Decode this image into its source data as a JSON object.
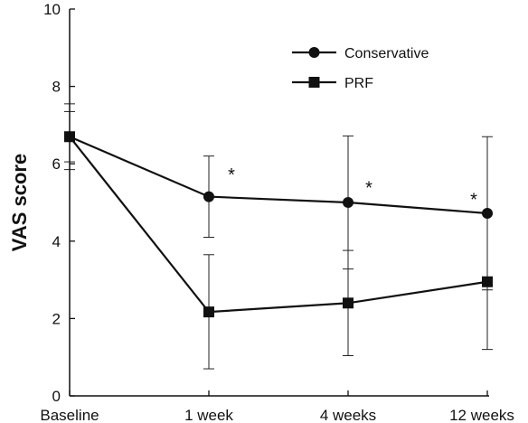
{
  "chart_data": {
    "type": "line",
    "ylabel": "VAS score",
    "xlabel": "",
    "ylim": [
      0,
      10
    ],
    "yticks": [
      0,
      2,
      4,
      6,
      8,
      10
    ],
    "categories": [
      "Baseline",
      "1 week",
      "4 weeks",
      "12 weeks"
    ],
    "legend_position": "top-right",
    "grid": false,
    "series": [
      {
        "name": "Conservative",
        "marker": "circle",
        "color": "#111111",
        "values": [
          6.7,
          5.15,
          5.0,
          4.72
        ],
        "err_upper": [
          7.55,
          6.2,
          6.72,
          6.7
        ],
        "err_lower": [
          5.85,
          4.1,
          3.28,
          2.74
        ]
      },
      {
        "name": "PRF",
        "marker": "square",
        "color": "#111111",
        "values": [
          6.7,
          2.17,
          2.4,
          2.95
        ],
        "err_upper": [
          7.35,
          3.65,
          3.76,
          4.7
        ],
        "err_lower": [
          6.05,
          0.7,
          1.04,
          1.2
        ]
      }
    ],
    "annotations": [
      {
        "category": "1 week",
        "text": "*",
        "y": 5.8
      },
      {
        "category": "4 weeks",
        "text": "*",
        "y": 5.45
      },
      {
        "category": "12 weeks",
        "text": "*",
        "y": 5.15
      }
    ]
  }
}
